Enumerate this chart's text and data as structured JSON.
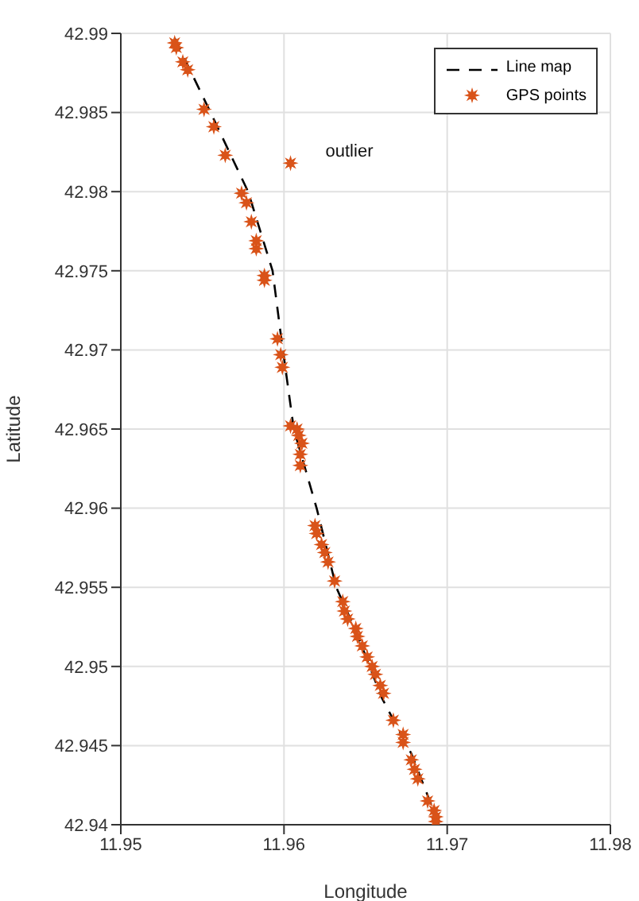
{
  "chart_data": {
    "type": "scatter",
    "xlabel": "Longitude",
    "ylabel": "Latitude",
    "xlim": [
      11.95,
      11.98
    ],
    "xticks": [
      11.95,
      11.96,
      11.97,
      11.98
    ],
    "ylim": [
      42.94,
      42.99
    ],
    "yticks": [
      42.94,
      42.945,
      42.95,
      42.955,
      42.96,
      42.965,
      42.97,
      42.975,
      42.98,
      42.985,
      42.99
    ],
    "grid": true,
    "legend": "top right",
    "annotations": [
      {
        "text": "outlier",
        "x": 11.9604,
        "y": 42.9818
      }
    ],
    "series": [
      {
        "name": "Line map",
        "type": "line",
        "color": "#000000",
        "line_style": "dashed",
        "marker": "none",
        "x": [
          11.9533,
          11.9555,
          11.9578,
          11.9593,
          11.9598,
          11.9606,
          11.962,
          11.9632,
          11.9645,
          11.966,
          11.9678,
          11.9695
        ],
        "values": [
          42.9897,
          42.985,
          42.98,
          42.975,
          42.971,
          42.965,
          42.96,
          42.955,
          42.952,
          42.948,
          42.9445,
          42.94
        ]
      },
      {
        "name": "GPS points",
        "color": "#d95319",
        "marker": "star",
        "x": [
          11.9533,
          11.9534,
          11.9538,
          11.9541,
          11.9551,
          11.9557,
          11.9564,
          11.9604,
          11.9574,
          11.9577,
          11.958,
          11.9583,
          11.9583,
          11.9588,
          11.9588,
          11.9596,
          11.9598,
          11.9599,
          11.9604,
          11.9608,
          11.9609,
          11.9611,
          11.961,
          11.961,
          11.9619,
          11.962,
          11.9623,
          11.9625,
          11.9627,
          11.9631,
          11.9636,
          11.9637,
          11.9639,
          11.9644,
          11.9645,
          11.9648,
          11.9651,
          11.9654,
          11.9656,
          11.9659,
          11.9661,
          11.9667,
          11.9673,
          11.9673,
          11.9678,
          11.968,
          11.9682,
          11.9688,
          11.9692,
          11.9693,
          11.9693
        ],
        "values": [
          42.9894,
          42.9891,
          42.9882,
          42.9877,
          42.9852,
          42.9841,
          42.9823,
          42.9818,
          42.9799,
          42.9793,
          42.9781,
          42.9769,
          42.9764,
          42.9747,
          42.9744,
          42.9707,
          42.9697,
          42.9689,
          42.9652,
          42.965,
          42.9646,
          42.9641,
          42.9634,
          42.9627,
          42.9589,
          42.9584,
          42.9577,
          42.9572,
          42.9566,
          42.9554,
          42.9541,
          42.9535,
          42.953,
          42.9524,
          42.9519,
          42.9513,
          42.9506,
          42.95,
          42.9495,
          42.9488,
          42.9483,
          42.9466,
          42.9457,
          42.9452,
          42.9441,
          42.9435,
          42.9429,
          42.9415,
          42.9409,
          42.9405,
          42.9402
        ]
      }
    ]
  }
}
